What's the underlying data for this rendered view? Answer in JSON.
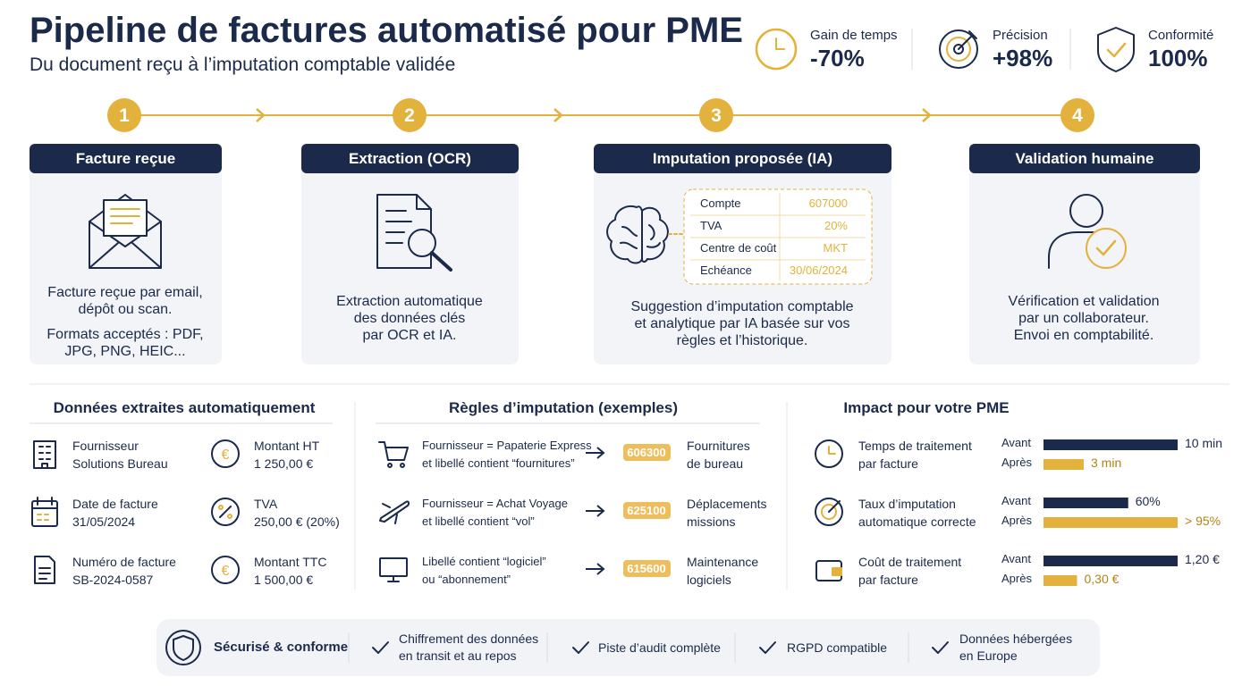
{
  "header": {
    "title": "Pipeline de factures automatisé pour PME",
    "subtitle": "Du document reçu à l’imputation comptable validée"
  },
  "kpis": [
    {
      "label": "Gain de temps",
      "value": "-70%"
    },
    {
      "label": "Précision",
      "value": "+98%"
    },
    {
      "label": "Conformité",
      "value": "100%"
    }
  ],
  "steps": [
    {
      "number": "1",
      "title": "Facture reçue",
      "lines": [
        "Facture reçue par email,",
        "dépôt ou scan.",
        "Formats acceptés : PDF,",
        "JPG, PNG, HEIC..."
      ]
    },
    {
      "number": "2",
      "title": "Extraction (OCR)",
      "lines": [
        "Extraction automatique",
        "des données clés",
        "par OCR et IA."
      ]
    },
    {
      "number": "3",
      "title": "Imputation proposée (IA)",
      "table": [
        [
          "Compte",
          "607000"
        ],
        [
          "TVA",
          "20%"
        ],
        [
          "Centre de coût",
          "MKT"
        ],
        [
          "Echéance",
          "30/06/2024"
        ]
      ],
      "lines": [
        "Suggestion d’imputation comptable",
        "et analytique par IA basée sur vos",
        "règles et l’historique."
      ]
    },
    {
      "number": "4",
      "title": "Validation humaine",
      "lines": [
        "Vérification et validation",
        "par un collaborateur.",
        "Envoi en comptabilité."
      ]
    }
  ],
  "extracted": {
    "title": "Données extraites automatiquement",
    "items": [
      {
        "label": "Fournisseur",
        "value": "Solutions Bureau"
      },
      {
        "label": "Montant HT",
        "value": "1 250,00 €"
      },
      {
        "label": "Date de facture",
        "value": "31/05/2024"
      },
      {
        "label": "TVA",
        "value": "250,00 € (20%)"
      },
      {
        "label": "Numéro de facture",
        "value": "SB-2024-0587"
      },
      {
        "label": "Montant TTC",
        "value": "1 500,00 €"
      }
    ]
  },
  "rules": {
    "title": "Règles d’imputation (exemples)",
    "items": [
      {
        "condition": [
          "Fournisseur = Papaterie Express",
          "et libellé contient “fournitures”"
        ],
        "account": "606300",
        "result": [
          "Fournitures",
          "de bureau"
        ]
      },
      {
        "condition": [
          "Fournisseur = Achat Voyage",
          "et libellé contient “vol”"
        ],
        "account": "625100",
        "result": [
          "Déplacements",
          "missions"
        ]
      },
      {
        "condition": [
          "Libellé contient “logiciel”",
          "ou “abonnement”"
        ],
        "account": "615600",
        "result": [
          "Maintenance",
          "logiciels"
        ]
      }
    ]
  },
  "impact": {
    "title": "Impact pour votre PME",
    "before_label": "Avant",
    "after_label": "Après",
    "rows": [
      {
        "label": [
          "Temps de traitement",
          "par facture"
        ],
        "before": {
          "value": 10,
          "label": "10 min"
        },
        "after": {
          "value": 3,
          "label": "3 min"
        }
      },
      {
        "label": [
          "Taux d’imputation",
          "automatique correcte"
        ],
        "before": {
          "value": 60,
          "label": "60%"
        },
        "after": {
          "value": 95,
          "label": "> 95%"
        }
      },
      {
        "label": [
          "Coût de traitement",
          "par facture"
        ],
        "before": {
          "value": 1.2,
          "label": "1,20 €"
        },
        "after": {
          "value": 0.3,
          "label": "0,30 €"
        }
      }
    ]
  },
  "footer": {
    "title": "Sécurisé & conforme",
    "items": [
      [
        "Chiffrement des données",
        "en transit et au repos"
      ],
      [
        "Piste d’audit complète"
      ],
      [
        "RGPD compatible"
      ],
      [
        "Données hébergées",
        "en Europe"
      ]
    ]
  }
}
